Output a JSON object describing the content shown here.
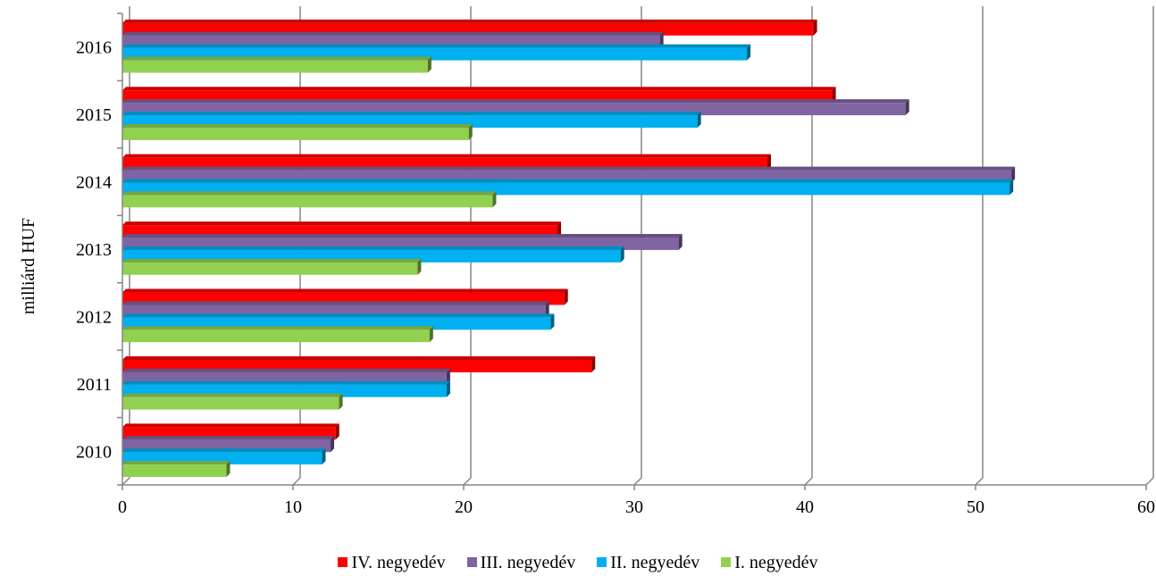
{
  "chart_data": {
    "type": "bar",
    "orientation": "horizontal",
    "categories": [
      "2010",
      "2011",
      "2012",
      "2013",
      "2014",
      "2015",
      "2016"
    ],
    "ylabel": "milliárd HUF",
    "xlabel": "",
    "xlim": [
      0,
      60
    ],
    "xticks": [
      "0",
      "10",
      "20",
      "30",
      "40",
      "50",
      "60"
    ],
    "grid": true,
    "legend_position": "bottom",
    "series": [
      {
        "name": "IV. negyedév",
        "color": "#ff0000",
        "values": [
          12.5,
          27.5,
          25.9,
          25.5,
          37.8,
          41.6,
          40.5
        ]
      },
      {
        "name": "III. negyedév",
        "color": "#8064a2",
        "values": [
          12.2,
          19.0,
          24.8,
          32.6,
          52.1,
          45.9,
          31.5
        ]
      },
      {
        "name": "II. negyedév",
        "color": "#00b0f0",
        "values": [
          11.7,
          19.0,
          25.1,
          29.2,
          52.0,
          33.7,
          36.6
        ]
      },
      {
        "name": "I. negyedév",
        "color": "#92d050",
        "values": [
          6.1,
          12.7,
          18.0,
          17.3,
          21.7,
          20.3,
          17.9
        ]
      }
    ]
  }
}
